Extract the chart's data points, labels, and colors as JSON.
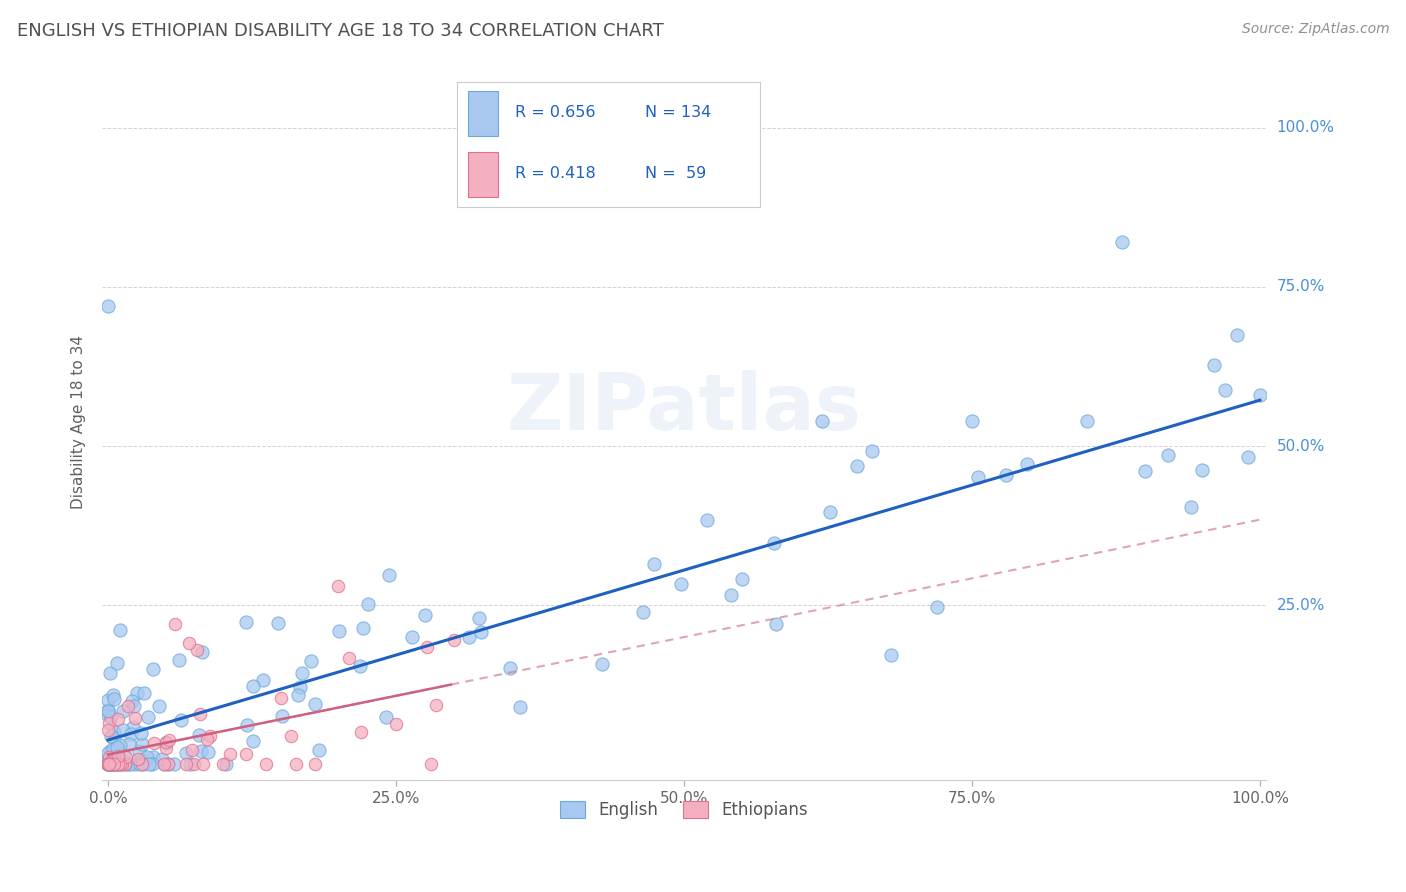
{
  "title": "ENGLISH VS ETHIOPIAN DISABILITY AGE 18 TO 34 CORRELATION CHART",
  "source": "Source: ZipAtlas.com",
  "ylabel": "Disability Age 18 to 34",
  "watermark": "ZIPatlas",
  "legend_r1": "R = 0.656",
  "legend_n1": "N = 134",
  "legend_r2": "R = 0.418",
  "legend_n2": "N =  59",
  "legend_label1": "English",
  "legend_label2": "Ethiopians",
  "english_color": "#a8c8f0",
  "english_edge_color": "#6aaada",
  "ethiopian_color": "#f4b0c0",
  "ethiopian_edge_color": "#e07090",
  "english_line_color": "#2060c0",
  "ethiopian_line_color": "#d06080",
  "ethiopian_dash_color": "#d08090",
  "background_color": "#ffffff",
  "grid_color": "#c8c8c8",
  "title_color": "#505050",
  "source_color": "#909090",
  "legend_text_color": "#2060c0",
  "ytick_color": "#4a90d9",
  "xtick_color": "#666666",
  "xlim": [
    -0.005,
    1.005
  ],
  "ylim": [
    -0.025,
    1.1
  ],
  "xticks": [
    0.0,
    0.25,
    0.5,
    0.75,
    1.0
  ],
  "xtick_labels": [
    "0.0%",
    "25.0%",
    "50.0%",
    "75.0%",
    "100.0%"
  ],
  "yticks": [
    0.25,
    0.5,
    0.75,
    1.0
  ],
  "ytick_labels": [
    "25.0%",
    "50.0%",
    "75.0%",
    "100.0%"
  ]
}
